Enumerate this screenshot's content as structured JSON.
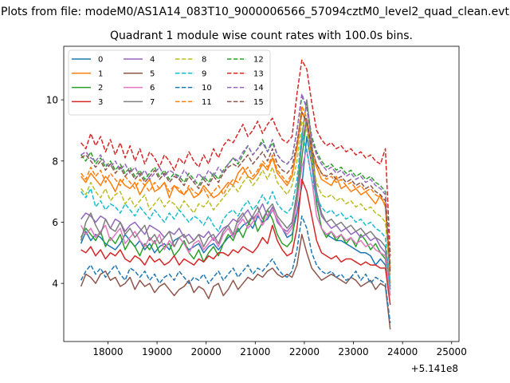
{
  "suptitle": "Plots from file: modeM0/AS1A14_083T10_9000006566_57094cztM0_level2_quad_clean.evt",
  "chart_data": {
    "type": "line",
    "title": "Quadrant 1 module wise count rates with 100.0s bins.",
    "xlabel": "",
    "ylabel": "",
    "x_offset_label": "+5.141e8",
    "xlim": [
      17100,
      25150
    ],
    "ylim": [
      2.1,
      11.75
    ],
    "xticks": [
      18000,
      19000,
      20000,
      21000,
      22000,
      23000,
      24000,
      25000
    ],
    "xtick_labels": [
      "18000",
      "19000",
      "20000",
      "21000",
      "22000",
      "23000",
      "24000",
      "25000"
    ],
    "yticks": [
      4,
      6,
      8,
      10
    ],
    "ytick_labels": [
      "4",
      "6",
      "8",
      "10"
    ],
    "x_start": 17450,
    "x_step": 100,
    "legend_position": "top-left",
    "series": [
      {
        "name": "0",
        "color": "#1f77b4",
        "dash": "solid",
        "values": [
          5.3,
          5.7,
          5.4,
          5.6,
          5.5,
          5.3,
          5.2,
          5.1,
          5.3,
          5.6,
          5.4,
          5.2,
          5.4,
          5.1,
          5.3,
          5.0,
          5.2,
          5.3,
          5.1,
          5.4,
          5.5,
          5.3,
          5.1,
          5.2,
          5.3,
          5.0,
          5.2,
          5.3,
          5.1,
          5.3,
          5.5,
          5.6,
          5.7,
          5.9,
          6.0,
          5.8,
          6.2,
          6.0,
          6.1,
          6.4,
          6.1,
          5.8,
          5.5,
          5.6,
          6.3,
          7.2,
          8.8,
          7.9,
          6.6,
          5.8,
          5.6,
          5.5,
          5.4,
          5.4,
          5.3,
          5.2,
          5.1,
          5.0,
          5.0,
          4.9,
          4.6,
          4.8,
          4.6,
          3.9
        ]
      },
      {
        "name": "1",
        "color": "#ff7f0e",
        "dash": "solid",
        "values": [
          7.5,
          7.3,
          7.6,
          7.4,
          7.2,
          7.5,
          7.3,
          7.0,
          7.4,
          7.2,
          7.1,
          7.3,
          6.9,
          7.2,
          7.4,
          7.0,
          7.1,
          7.3,
          6.8,
          7.2,
          7.0,
          6.9,
          7.1,
          6.8,
          6.9,
          7.2,
          7.0,
          6.8,
          6.9,
          7.1,
          7.3,
          7.2,
          7.6,
          7.8,
          7.5,
          7.4,
          7.6,
          7.9,
          7.7,
          8.1,
          7.6,
          7.4,
          7.2,
          7.5,
          8.4,
          9.6,
          9.2,
          8.2,
          7.8,
          7.4,
          7.3,
          7.2,
          7.5,
          7.1,
          7.2,
          7.0,
          7.1,
          6.9,
          7.0,
          6.8,
          6.6,
          6.9,
          6.5,
          4.0
        ]
      },
      {
        "name": "2",
        "color": "#2ca02c",
        "dash": "solid",
        "values": [
          5.5,
          5.8,
          5.6,
          5.4,
          5.7,
          5.2,
          5.5,
          5.3,
          5.6,
          5.1,
          5.4,
          5.2,
          4.9,
          5.3,
          5.1,
          5.4,
          5.0,
          5.2,
          5.3,
          4.9,
          5.1,
          5.4,
          5.0,
          4.8,
          5.1,
          4.7,
          5.0,
          5.2,
          4.9,
          5.3,
          5.6,
          5.4,
          5.8,
          5.5,
          5.9,
          6.2,
          5.7,
          6.0,
          6.4,
          6.1,
          5.6,
          5.3,
          5.2,
          5.4,
          6.8,
          8.1,
          9.4,
          8.4,
          6.6,
          5.8,
          5.5,
          5.7,
          5.4,
          5.6,
          5.3,
          5.5,
          5.2,
          5.6,
          5.4,
          5.1,
          5.3,
          5.0,
          4.8,
          3.6
        ]
      },
      {
        "name": "3",
        "color": "#d62728",
        "dash": "solid",
        "values": [
          5.1,
          5.0,
          5.2,
          4.9,
          5.1,
          4.8,
          5.0,
          4.9,
          5.1,
          4.8,
          4.7,
          4.9,
          4.8,
          4.6,
          4.9,
          4.7,
          4.8,
          4.6,
          4.7,
          4.9,
          4.6,
          4.8,
          4.7,
          4.6,
          4.8,
          4.7,
          4.9,
          4.8,
          5.0,
          5.0,
          4.9,
          5.1,
          5.0,
          5.2,
          5.1,
          5.0,
          5.2,
          5.5,
          5.3,
          5.9,
          5.4,
          5.1,
          4.9,
          5.0,
          5.8,
          7.4,
          7.0,
          6.2,
          5.4,
          5.0,
          4.9,
          4.8,
          4.9,
          4.7,
          4.8,
          4.8,
          4.7,
          4.6,
          4.7,
          4.6,
          4.6,
          4.5,
          4.5,
          3.3
        ]
      },
      {
        "name": "4",
        "color": "#9467bd",
        "dash": "solid",
        "values": [
          6.1,
          6.3,
          6.2,
          6.0,
          6.2,
          6.1,
          5.8,
          6.1,
          6.0,
          5.7,
          5.9,
          6.0,
          5.8,
          5.6,
          5.9,
          5.8,
          5.7,
          5.5,
          5.7,
          5.6,
          5.8,
          5.5,
          5.6,
          5.4,
          5.6,
          5.5,
          5.7,
          5.4,
          5.6,
          5.8,
          5.9,
          6.1,
          6.0,
          6.2,
          6.4,
          6.1,
          6.3,
          6.6,
          6.2,
          6.5,
          6.0,
          5.8,
          5.7,
          5.9,
          7.0,
          8.6,
          9.4,
          8.0,
          6.8,
          6.2,
          6.0,
          5.8,
          5.9,
          5.7,
          5.8,
          5.6,
          5.7,
          5.5,
          5.6,
          5.4,
          5.5,
          5.2,
          5.0,
          3.8
        ]
      },
      {
        "name": "5",
        "color": "#8c564b",
        "dash": "solid",
        "values": [
          3.9,
          4.3,
          4.2,
          4.0,
          4.3,
          4.4,
          4.1,
          4.2,
          3.9,
          4.0,
          4.2,
          3.8,
          4.1,
          3.9,
          4.0,
          3.7,
          3.9,
          4.0,
          3.8,
          3.6,
          3.8,
          3.9,
          4.1,
          3.7,
          3.9,
          3.8,
          3.5,
          3.9,
          4.0,
          3.6,
          3.8,
          4.1,
          3.8,
          4.0,
          4.2,
          4.1,
          4.3,
          4.2,
          4.4,
          4.5,
          4.3,
          4.2,
          4.3,
          4.2,
          4.6,
          5.6,
          5.0,
          4.5,
          4.3,
          4.1,
          4.2,
          4.3,
          4.2,
          4.1,
          4.0,
          4.2,
          4.1,
          3.9,
          4.0,
          4.1,
          3.8,
          4.0,
          3.9,
          2.5
        ]
      },
      {
        "name": "6",
        "color": "#e377c2",
        "dash": "solid",
        "values": [
          5.9,
          5.6,
          5.8,
          5.5,
          5.7,
          5.9,
          5.4,
          5.6,
          5.8,
          5.3,
          5.5,
          5.7,
          5.4,
          5.2,
          5.5,
          5.3,
          5.6,
          5.1,
          5.4,
          5.2,
          5.5,
          5.3,
          5.0,
          5.3,
          5.4,
          5.1,
          5.3,
          5.5,
          5.2,
          5.6,
          5.8,
          5.5,
          5.9,
          6.1,
          5.8,
          6.0,
          6.3,
          5.9,
          6.2,
          6.4,
          6.1,
          5.8,
          5.6,
          5.8,
          6.6,
          7.8,
          8.4,
          7.4,
          6.2,
          5.8,
          5.6,
          5.7,
          5.5,
          5.6,
          5.4,
          5.5,
          5.3,
          5.4,
          5.2,
          5.3,
          5.1,
          5.0,
          4.9,
          3.6
        ]
      },
      {
        "name": "7",
        "color": "#7f7f7f",
        "dash": "solid",
        "values": [
          5.4,
          6.0,
          6.3,
          5.9,
          5.6,
          6.1,
          5.8,
          5.7,
          6.0,
          5.6,
          5.8,
          5.5,
          5.7,
          5.9,
          5.4,
          5.6,
          5.3,
          5.5,
          5.7,
          5.2,
          5.5,
          5.6,
          5.3,
          5.4,
          5.6,
          5.2,
          5.5,
          5.6,
          5.3,
          5.7,
          5.9,
          5.6,
          6.1,
          6.3,
          6.0,
          6.2,
          6.5,
          6.1,
          6.4,
          6.6,
          6.2,
          6.0,
          5.8,
          6.0,
          7.0,
          8.8,
          10.0,
          8.6,
          7.0,
          6.3,
          6.0,
          6.1,
          5.9,
          6.0,
          5.8,
          5.9,
          5.7,
          5.8,
          5.6,
          5.7,
          5.5,
          5.4,
          5.2,
          3.9
        ]
      },
      {
        "name": "8",
        "color": "#bcbd22",
        "dash": "dashed",
        "values": [
          7.1,
          6.9,
          7.3,
          7.0,
          6.8,
          7.1,
          6.7,
          6.9,
          7.0,
          6.6,
          6.8,
          6.5,
          6.7,
          6.9,
          6.4,
          6.6,
          6.8,
          6.5,
          6.7,
          6.6,
          6.4,
          6.7,
          6.5,
          6.3,
          6.6,
          6.5,
          6.7,
          6.4,
          6.6,
          6.8,
          7.0,
          7.2,
          7.0,
          7.3,
          7.5,
          7.2,
          7.4,
          7.7,
          7.4,
          7.8,
          7.3,
          7.1,
          6.9,
          7.2,
          8.0,
          9.3,
          9.0,
          8.0,
          7.3,
          6.9,
          6.8,
          6.9,
          6.7,
          6.8,
          6.6,
          6.7,
          6.5,
          6.6,
          6.4,
          6.5,
          6.3,
          6.2,
          6.0,
          4.3
        ]
      },
      {
        "name": "9",
        "color": "#17becf",
        "dash": "dashed",
        "values": [
          7.0,
          6.8,
          7.1,
          6.5,
          6.7,
          6.4,
          6.6,
          6.5,
          6.3,
          6.6,
          6.4,
          6.2,
          6.5,
          6.3,
          6.1,
          6.4,
          6.2,
          6.0,
          6.3,
          6.1,
          6.4,
          6.2,
          6.0,
          6.2,
          6.1,
          5.9,
          6.2,
          5.9,
          5.7,
          6.1,
          6.3,
          6.4,
          6.2,
          6.5,
          6.7,
          6.4,
          6.6,
          6.9,
          6.6,
          7.0,
          6.6,
          6.4,
          6.3,
          6.5,
          7.4,
          8.9,
          8.3,
          7.4,
          6.8,
          6.5,
          6.3,
          6.4,
          6.2,
          6.3,
          6.1,
          6.2,
          6.0,
          6.1,
          5.9,
          6.0,
          5.8,
          5.7,
          5.5,
          3.8
        ]
      },
      {
        "name": "10",
        "color": "#1f77b4",
        "dash": "dashed",
        "values": [
          4.1,
          4.4,
          4.6,
          4.3,
          4.5,
          4.2,
          4.4,
          4.6,
          4.3,
          4.1,
          4.5,
          4.4,
          4.2,
          4.4,
          4.1,
          4.3,
          4.0,
          4.2,
          4.3,
          4.1,
          4.4,
          4.2,
          4.0,
          4.2,
          4.1,
          4.3,
          4.0,
          4.2,
          4.4,
          4.1,
          4.3,
          4.5,
          4.2,
          4.4,
          4.6,
          4.3,
          4.5,
          4.4,
          4.6,
          4.8,
          4.5,
          4.3,
          4.2,
          4.4,
          5.1,
          6.2,
          5.8,
          5.0,
          4.6,
          4.4,
          4.3,
          4.4,
          4.2,
          4.3,
          4.1,
          4.2,
          4.4,
          4.1,
          4.3,
          4.0,
          4.2,
          4.1,
          4.0,
          2.7
        ]
      },
      {
        "name": "11",
        "color": "#ff7f0e",
        "dash": "dashed",
        "values": [
          7.6,
          7.4,
          7.8,
          7.5,
          7.7,
          7.3,
          7.6,
          7.4,
          7.2,
          7.5,
          7.3,
          7.1,
          7.4,
          7.2,
          7.0,
          7.3,
          7.1,
          7.3,
          7.0,
          7.2,
          7.1,
          6.9,
          7.2,
          7.0,
          6.9,
          7.1,
          6.8,
          7.0,
          7.2,
          6.9,
          7.2,
          7.4,
          7.3,
          7.6,
          7.8,
          7.5,
          7.7,
          8.0,
          7.8,
          8.2,
          7.7,
          7.5,
          7.3,
          7.6,
          8.5,
          9.8,
          9.4,
          8.4,
          7.9,
          7.6,
          7.4,
          7.5,
          7.3,
          7.4,
          7.2,
          7.3,
          7.1,
          7.2,
          7.0,
          7.1,
          6.9,
          6.8,
          6.6,
          4.5
        ]
      },
      {
        "name": "12",
        "color": "#2ca02c",
        "dash": "dashed",
        "values": [
          8.2,
          8.0,
          8.3,
          7.9,
          8.1,
          7.8,
          8.0,
          7.7,
          7.9,
          7.6,
          7.8,
          7.5,
          7.7,
          7.4,
          7.6,
          7.8,
          7.5,
          7.7,
          7.4,
          7.6,
          7.5,
          7.3,
          7.6,
          7.4,
          7.2,
          7.5,
          7.3,
          7.6,
          7.4,
          7.7,
          7.9,
          8.1,
          7.9,
          8.2,
          8.5,
          8.2,
          8.4,
          8.7,
          8.3,
          8.6,
          8.2,
          8.0,
          7.9,
          8.1,
          9.0,
          10.1,
          9.8,
          8.8,
          8.3,
          8.0,
          7.8,
          7.9,
          7.7,
          7.8,
          7.6,
          7.7,
          7.5,
          7.6,
          7.4,
          7.5,
          7.3,
          7.2,
          7.0,
          4.6
        ]
      },
      {
        "name": "13",
        "color": "#d62728",
        "dash": "dashed",
        "values": [
          8.6,
          8.4,
          8.9,
          8.5,
          8.8,
          8.3,
          8.7,
          8.2,
          8.6,
          8.1,
          8.5,
          8.0,
          8.4,
          7.9,
          8.3,
          8.1,
          7.8,
          8.2,
          8.0,
          7.7,
          8.1,
          7.9,
          8.3,
          8.0,
          7.8,
          8.2,
          7.9,
          8.4,
          8.1,
          8.5,
          8.7,
          8.6,
          8.9,
          9.2,
          8.8,
          9.0,
          9.3,
          8.9,
          9.2,
          9.4,
          9.0,
          8.7,
          8.6,
          8.8,
          10.2,
          11.3,
          11.0,
          9.9,
          9.0,
          8.7,
          8.5,
          8.6,
          8.4,
          8.5,
          8.3,
          8.4,
          8.2,
          8.3,
          8.1,
          8.2,
          8.0,
          7.9,
          8.4,
          4.9
        ]
      },
      {
        "name": "14",
        "color": "#9467bd",
        "dash": "dashed",
        "values": [
          8.2,
          8.3,
          8.1,
          8.0,
          8.2,
          7.9,
          7.8,
          8.0,
          7.7,
          7.9,
          7.6,
          7.8,
          7.5,
          7.7,
          7.4,
          7.6,
          7.8,
          7.5,
          7.7,
          7.6,
          7.4,
          7.7,
          7.5,
          7.3,
          7.6,
          7.4,
          7.7,
          7.5,
          7.8,
          7.6,
          7.9,
          8.1,
          8.0,
          8.3,
          8.5,
          8.2,
          8.4,
          8.6,
          8.3,
          8.7,
          8.2,
          8.0,
          7.9,
          8.1,
          9.0,
          10.2,
          9.7,
          8.7,
          8.2,
          7.9,
          7.7,
          7.8,
          7.6,
          7.7,
          7.5,
          7.6,
          7.4,
          7.5,
          7.3,
          7.4,
          7.2,
          7.1,
          6.9,
          4.4
        ]
      },
      {
        "name": "15",
        "color": "#8c564b",
        "dash": "dashed",
        "values": [
          8.1,
          8.2,
          8.0,
          7.8,
          8.0,
          7.7,
          7.9,
          7.6,
          7.8,
          7.5,
          7.7,
          7.4,
          7.6,
          7.3,
          7.5,
          7.7,
          7.4,
          7.6,
          7.3,
          7.5,
          7.4,
          7.2,
          7.5,
          7.3,
          7.1,
          7.4,
          7.2,
          7.5,
          7.3,
          7.6,
          7.8,
          7.9,
          7.8,
          8.0,
          8.2,
          7.9,
          8.1,
          8.3,
          8.0,
          8.4,
          7.9,
          7.7,
          7.6,
          7.8,
          8.6,
          9.6,
          9.3,
          8.4,
          7.9,
          7.6,
          7.5,
          7.6,
          7.4,
          7.5,
          7.3,
          7.4,
          7.2,
          7.3,
          7.1,
          7.2,
          7.0,
          6.9,
          6.7,
          4.3
        ]
      }
    ]
  }
}
